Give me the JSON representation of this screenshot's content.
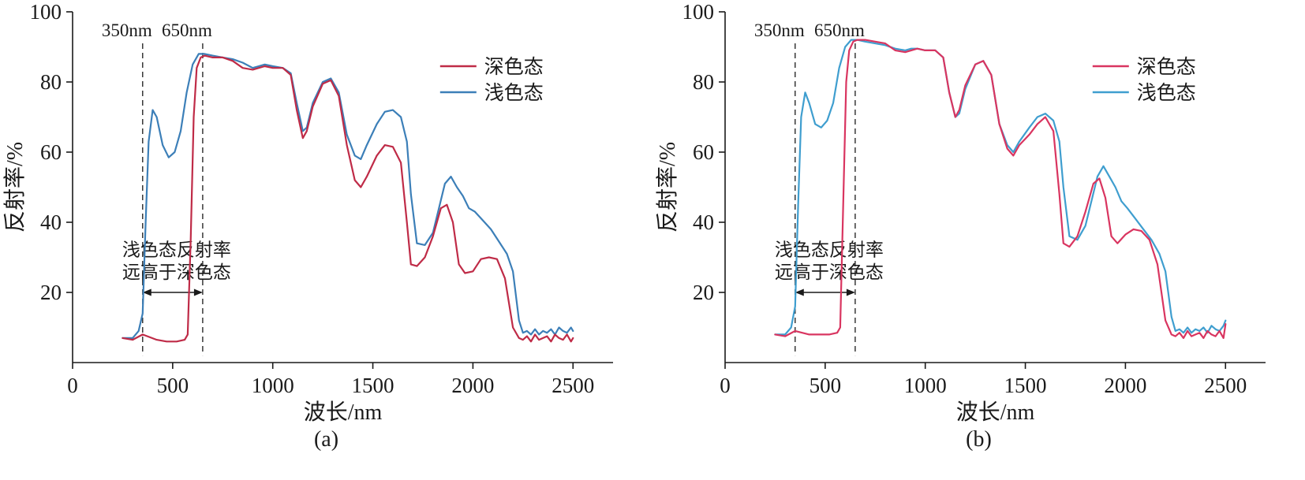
{
  "chart_data": [
    {
      "type": "line",
      "sublabel": "(a)",
      "title": "",
      "xlabel": "波长/nm",
      "ylabel": "反射率/%",
      "xlim": [
        0,
        2700
      ],
      "ylim": [
        0,
        100
      ],
      "x_ticks": [
        0,
        500,
        1000,
        1500,
        2000,
        2500
      ],
      "y_ticks": [
        20,
        40,
        60,
        80,
        100
      ],
      "grid": false,
      "axis_color": "#1a1a1a",
      "legend_position": "inside-top-right",
      "annotations": {
        "ref_lines": [
          {
            "x": 350,
            "label": "350nm"
          },
          {
            "x": 650,
            "label": "650nm"
          }
        ],
        "ref_line_y_range": [
          2,
          91
        ],
        "ref_label_y": 93,
        "range_arrow": {
          "x1": 350,
          "x2": 650,
          "y": 20,
          "double_headed": true
        },
        "note": {
          "lines": [
            "浅色态反射率",
            "远高于深色态"
          ],
          "x": 520,
          "y_top": 30.5,
          "line_gap": 6.5
        }
      },
      "series": [
        {
          "key": "dark-state",
          "name": "深色态",
          "color": "#bf2b47",
          "x": [
            250,
            300,
            350,
            420,
            470,
            520,
            560,
            575,
            590,
            605,
            620,
            640,
            660,
            700,
            750,
            800,
            850,
            900,
            930,
            960,
            1000,
            1050,
            1090,
            1120,
            1150,
            1170,
            1200,
            1250,
            1290,
            1330,
            1370,
            1410,
            1440,
            1470,
            1520,
            1560,
            1600,
            1640,
            1670,
            1690,
            1720,
            1760,
            1800,
            1840,
            1870,
            1900,
            1930,
            1960,
            2000,
            2040,
            2080,
            2120,
            2160,
            2200,
            2230,
            2250,
            2270,
            2290,
            2310,
            2330,
            2350,
            2370,
            2390,
            2410,
            2430,
            2450,
            2470,
            2490,
            2500
          ],
          "y": [
            7,
            6.5,
            8,
            6.5,
            6,
            6,
            6.5,
            8,
            35,
            70,
            84,
            87,
            87.5,
            87,
            87,
            86,
            84,
            83.5,
            84,
            84.5,
            84,
            84,
            82,
            72,
            64,
            66,
            73,
            79.5,
            80.5,
            76,
            62,
            52,
            50,
            53,
            59,
            62,
            61.5,
            57,
            40,
            28,
            27.5,
            30,
            36,
            44,
            45,
            40,
            28,
            25.5,
            26,
            29.5,
            30,
            29.5,
            24,
            10,
            7,
            6.5,
            7.5,
            6,
            8,
            6.5,
            7,
            7.5,
            6,
            8,
            7,
            6.5,
            8,
            6,
            7
          ]
        },
        {
          "key": "light-state",
          "name": "浅色态",
          "color": "#3c7fb8",
          "x": [
            250,
            300,
            330,
            350,
            365,
            380,
            400,
            420,
            450,
            480,
            510,
            540,
            570,
            600,
            630,
            660,
            700,
            750,
            800,
            850,
            900,
            930,
            960,
            1000,
            1050,
            1090,
            1120,
            1150,
            1170,
            1200,
            1250,
            1290,
            1330,
            1370,
            1410,
            1440,
            1470,
            1520,
            1560,
            1600,
            1640,
            1670,
            1690,
            1720,
            1760,
            1800,
            1830,
            1860,
            1890,
            1920,
            1950,
            1980,
            2010,
            2050,
            2090,
            2130,
            2170,
            2200,
            2230,
            2250,
            2270,
            2290,
            2310,
            2330,
            2350,
            2370,
            2390,
            2410,
            2430,
            2450,
            2470,
            2490,
            2500
          ],
          "y": [
            7,
            7,
            9,
            14,
            40,
            63,
            72,
            70,
            62,
            58.5,
            60,
            66,
            77,
            85,
            88,
            88,
            87.5,
            87,
            86.5,
            85.5,
            84,
            84.5,
            85,
            84.5,
            84,
            82.5,
            74,
            66,
            67,
            74,
            80,
            81,
            77,
            65,
            59,
            58,
            62,
            68,
            71.5,
            72,
            70,
            63,
            48,
            34,
            33.5,
            37,
            44,
            51,
            53,
            50,
            47.5,
            44,
            43,
            40.5,
            38,
            34.5,
            31,
            26,
            12,
            8.5,
            9,
            8,
            9.5,
            8,
            9,
            8.5,
            9.5,
            8,
            10,
            9,
            8.5,
            10,
            9
          ]
        }
      ]
    },
    {
      "type": "line",
      "sublabel": "(b)",
      "title": "",
      "xlabel": "波长/nm",
      "ylabel": "反射率/%",
      "xlim": [
        0,
        2700
      ],
      "ylim": [
        0,
        100
      ],
      "x_ticks": [
        0,
        500,
        1000,
        1500,
        2000,
        2500
      ],
      "y_ticks": [
        20,
        40,
        60,
        80,
        100
      ],
      "grid": false,
      "axis_color": "#1a1a1a",
      "legend_position": "inside-top-right",
      "annotations": {
        "ref_lines": [
          {
            "x": 350,
            "label": "350nm"
          },
          {
            "x": 650,
            "label": "650nm"
          }
        ],
        "ref_line_y_range": [
          2,
          91
        ],
        "ref_label_y": 93,
        "range_arrow": {
          "x1": 350,
          "x2": 650,
          "y": 20,
          "double_headed": true
        },
        "note": {
          "lines": [
            "浅色态反射率",
            "远高于深色态"
          ],
          "x": 520,
          "y_top": 30.5,
          "line_gap": 6.5
        }
      },
      "series": [
        {
          "key": "dark-state",
          "name": "深色态",
          "color": "#d93560",
          "x": [
            250,
            300,
            350,
            420,
            470,
            520,
            560,
            575,
            590,
            605,
            620,
            640,
            660,
            700,
            750,
            800,
            850,
            900,
            930,
            960,
            1000,
            1050,
            1090,
            1120,
            1150,
            1170,
            1200,
            1250,
            1290,
            1330,
            1370,
            1410,
            1440,
            1470,
            1520,
            1560,
            1600,
            1640,
            1670,
            1690,
            1720,
            1760,
            1800,
            1840,
            1870,
            1900,
            1930,
            1960,
            2000,
            2040,
            2080,
            2120,
            2160,
            2200,
            2230,
            2250,
            2270,
            2290,
            2310,
            2330,
            2350,
            2370,
            2390,
            2410,
            2430,
            2450,
            2470,
            2490,
            2500
          ],
          "y": [
            8,
            7.5,
            9,
            8,
            8,
            8,
            8.5,
            10,
            45,
            80,
            89,
            91.5,
            92,
            92,
            91.5,
            91,
            89,
            88.5,
            89,
            89.5,
            89,
            89,
            87,
            77,
            70,
            72,
            79,
            85,
            86,
            82,
            68,
            61,
            59,
            62,
            65,
            68,
            70,
            66,
            48,
            34,
            33,
            36,
            43,
            51,
            52.5,
            47,
            36,
            34,
            36.5,
            38,
            37.5,
            35,
            28,
            12,
            8,
            7.5,
            8.5,
            7,
            9,
            7.5,
            8,
            8.5,
            7,
            9,
            8,
            7.5,
            9,
            7,
            11
          ]
        },
        {
          "key": "light-state",
          "name": "浅色态",
          "color": "#3f9ecf",
          "x": [
            250,
            300,
            330,
            350,
            365,
            380,
            400,
            420,
            450,
            480,
            510,
            540,
            570,
            600,
            630,
            660,
            700,
            750,
            800,
            850,
            900,
            930,
            960,
            1000,
            1050,
            1090,
            1120,
            1150,
            1170,
            1200,
            1250,
            1290,
            1330,
            1370,
            1410,
            1440,
            1470,
            1520,
            1560,
            1600,
            1640,
            1670,
            1690,
            1720,
            1760,
            1800,
            1830,
            1860,
            1890,
            1920,
            1950,
            1980,
            2010,
            2050,
            2090,
            2130,
            2170,
            2200,
            2230,
            2250,
            2270,
            2290,
            2310,
            2330,
            2350,
            2370,
            2390,
            2410,
            2430,
            2450,
            2470,
            2490,
            2500
          ],
          "y": [
            8,
            8,
            10,
            16,
            45,
            70,
            77,
            74,
            68,
            67,
            69,
            74,
            84,
            90,
            92,
            92,
            91.5,
            91,
            90.5,
            89.5,
            89,
            89.5,
            89.5,
            89,
            89,
            87,
            77,
            70,
            71,
            78,
            85,
            86,
            82,
            68,
            62,
            60,
            63,
            67,
            70,
            71,
            69,
            63,
            50,
            36,
            35,
            39,
            46,
            53,
            56,
            53,
            50,
            46,
            44,
            41,
            38,
            35,
            31,
            26,
            13,
            9,
            9.5,
            8.5,
            10,
            8.5,
            9.5,
            9,
            10,
            8.5,
            10.5,
            9.5,
            9,
            10.5,
            12
          ]
        }
      ]
    }
  ]
}
